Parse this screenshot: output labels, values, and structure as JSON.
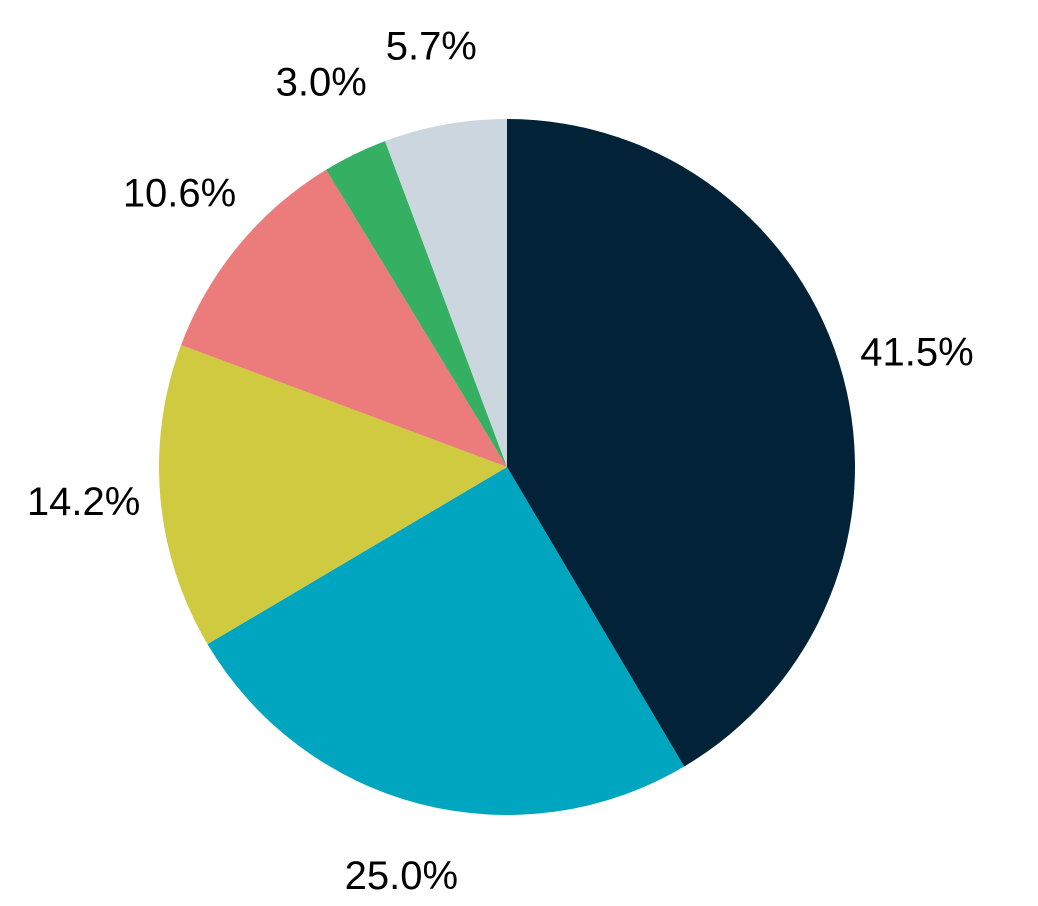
{
  "chart_data": {
    "type": "pie",
    "values": [
      41.5,
      25.0,
      14.2,
      10.6,
      3.0,
      5.7
    ],
    "value_labels": [
      "41.5%",
      "25.0%",
      "14.2%",
      "10.6%",
      "3.0%",
      "5.7%"
    ],
    "colors": [
      "#022337",
      "#00a6c0",
      "#cfca3f",
      "#ec7c7c",
      "#35b063",
      "#ccd6de"
    ]
  }
}
